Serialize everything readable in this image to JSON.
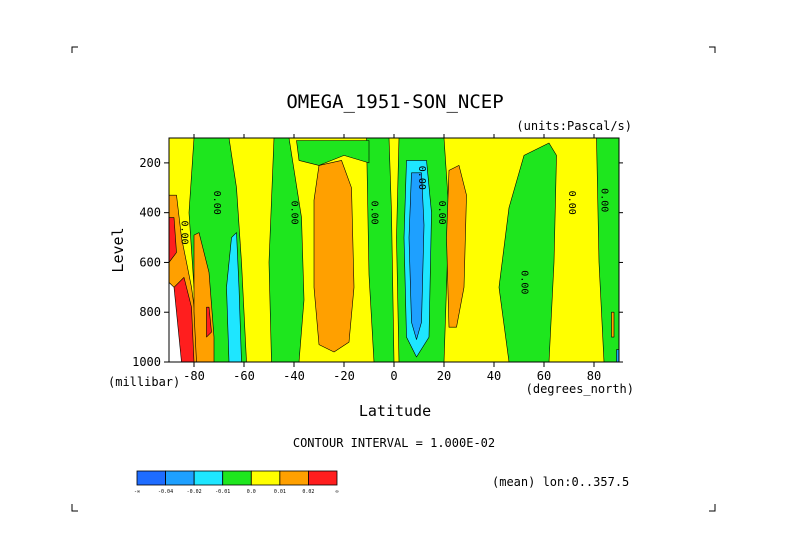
{
  "chart_data": {
    "type": "heatmap",
    "title": "OMEGA_1951-SON_NCEP",
    "units": "(units:Pascal/s)",
    "xlabel": "Latitude",
    "ylabel": "Level",
    "x_units": "(degrees_north)",
    "y_units": "(millibar)",
    "xlim": [
      -90,
      90
    ],
    "ylim": [
      1000,
      100
    ],
    "x_ticks": [
      -80,
      -60,
      -40,
      -20,
      0,
      20,
      40,
      60,
      80
    ],
    "y_ticks": [
      200,
      400,
      600,
      800,
      1000
    ],
    "x_tick_labels": [
      "-80",
      "-60",
      "-40",
      "-20",
      "0",
      "20",
      "40",
      "60",
      "80"
    ],
    "y_tick_labels": [
      "200",
      "400",
      "600",
      "800",
      "1000"
    ],
    "contour_interval_text": "CONTOUR INTERVAL = 1.000E-02",
    "mean_text": "(mean) lon:0..357.5",
    "contour_labels": [
      {
        "text": "0.00",
        "lat": -85,
        "level": 480
      },
      {
        "text": "0.00",
        "lat": -72,
        "level": 360
      },
      {
        "text": "0.00",
        "lat": -41,
        "level": 400
      },
      {
        "text": "0.00",
        "lat": -9,
        "level": 400
      },
      {
        "text": "0.00",
        "lat": 10,
        "level": 260
      },
      {
        "text": "0.00",
        "lat": 18,
        "level": 400
      },
      {
        "text": "0.00",
        "lat": 51,
        "level": 680
      },
      {
        "text": "0.00",
        "lat": 70,
        "level": 360
      },
      {
        "text": "0.00",
        "lat": 83,
        "level": 350
      }
    ],
    "color_levels": [
      {
        "label": "-∞",
        "color": "#1e6cff"
      },
      {
        "label": "-0.04",
        "color": "#1ea0ff"
      },
      {
        "label": "-0.02",
        "color": "#1ee6ff"
      },
      {
        "label": "-0.01",
        "color": "#1ee61e"
      },
      {
        "label": "0.0",
        "color": "#ffff00"
      },
      {
        "label": "0.01",
        "color": "#ffa000"
      },
      {
        "label": "0.02",
        "color": "#ff1e1e"
      },
      {
        "label": "∞",
        "color": ""
      }
    ],
    "regions": [
      {
        "fill": "#1ee61e",
        "pts": [
          [
            -80,
            100
          ],
          [
            -66,
            100
          ],
          [
            -63,
            300
          ],
          [
            -61,
            600
          ],
          [
            -59,
            1000
          ],
          [
            -76,
            1000
          ],
          [
            -80,
            700
          ],
          [
            -82,
            400
          ]
        ]
      },
      {
        "fill": "#1ee61e",
        "pts": [
          [
            -48,
            100
          ],
          [
            -42,
            100
          ],
          [
            -37,
            420
          ],
          [
            -36,
            750
          ],
          [
            -38,
            1000
          ],
          [
            -49,
            1000
          ],
          [
            -50,
            600
          ]
        ]
      },
      {
        "fill": "#1ee61e",
        "pts": [
          [
            -11,
            100
          ],
          [
            -2,
            100
          ],
          [
            -1,
            400
          ],
          [
            0,
            1000
          ],
          [
            -8,
            1000
          ],
          [
            -10,
            650
          ]
        ]
      },
      {
        "fill": "#1ee61e",
        "pts": [
          [
            -39,
            110
          ],
          [
            -10,
            110
          ],
          [
            -10,
            200
          ],
          [
            -20,
            170
          ],
          [
            -30,
            210
          ],
          [
            -38,
            190
          ]
        ]
      },
      {
        "fill": "#1ee61e",
        "pts": [
          [
            2,
            100
          ],
          [
            20,
            100
          ],
          [
            22,
            400
          ],
          [
            20,
            1000
          ],
          [
            2,
            1000
          ],
          [
            1,
            500
          ]
        ]
      },
      {
        "fill": "#1ee61e",
        "pts": [
          [
            46,
            380
          ],
          [
            52,
            170
          ],
          [
            62,
            120
          ],
          [
            65,
            170
          ],
          [
            64,
            600
          ],
          [
            62,
            1000
          ],
          [
            46,
            1000
          ],
          [
            42,
            700
          ]
        ]
      },
      {
        "fill": "#1ee61e",
        "pts": [
          [
            81,
            100
          ],
          [
            90,
            100
          ],
          [
            90,
            1000
          ],
          [
            84,
            1000
          ],
          [
            82,
            600
          ]
        ]
      },
      {
        "fill": "#1ee6ff",
        "pts": [
          [
            -65,
            500
          ],
          [
            -63,
            480
          ],
          [
            -62,
            700
          ],
          [
            -61,
            1000
          ],
          [
            -66,
            1000
          ],
          [
            -67,
            700
          ]
        ]
      },
      {
        "fill": "#1ee6ff",
        "pts": [
          [
            5,
            190
          ],
          [
            13,
            190
          ],
          [
            15,
            400
          ],
          [
            14,
            900
          ],
          [
            9,
            980
          ],
          [
            5,
            900
          ],
          [
            4,
            500
          ]
        ]
      },
      {
        "fill": "#1ea0ff",
        "pts": [
          [
            7,
            240
          ],
          [
            11,
            240
          ],
          [
            12,
            450
          ],
          [
            11,
            840
          ],
          [
            9,
            910
          ],
          [
            7,
            840
          ],
          [
            6,
            500
          ]
        ]
      },
      {
        "fill": "#ffa000",
        "pts": [
          [
            -30,
            210
          ],
          [
            -21,
            190
          ],
          [
            -17,
            300
          ],
          [
            -16,
            700
          ],
          [
            -18,
            920
          ],
          [
            -24,
            960
          ],
          [
            -30,
            930
          ],
          [
            -32,
            700
          ],
          [
            -32,
            350
          ]
        ]
      },
      {
        "fill": "#ffa000",
        "pts": [
          [
            22,
            230
          ],
          [
            26,
            210
          ],
          [
            29,
            330
          ],
          [
            28,
            700
          ],
          [
            25,
            860
          ],
          [
            22,
            860
          ],
          [
            21,
            500
          ]
        ]
      },
      {
        "fill": "#ffa000",
        "pts": [
          [
            -90,
            330
          ],
          [
            -87,
            330
          ],
          [
            -85,
            500
          ],
          [
            -81,
            700
          ],
          [
            -79,
            850
          ],
          [
            -78,
            1000
          ],
          [
            -90,
            1000
          ]
        ]
      },
      {
        "fill": "#ffa000",
        "pts": [
          [
            -80,
            490
          ],
          [
            -78,
            480
          ],
          [
            -74,
            640
          ],
          [
            -72,
            900
          ],
          [
            -72,
            1000
          ],
          [
            -79,
            1000
          ],
          [
            -80,
            800
          ]
        ]
      },
      {
        "fill": "#ffa000",
        "pts": [
          [
            87,
            800
          ],
          [
            88,
            800
          ],
          [
            88,
            900
          ],
          [
            87,
            900
          ]
        ]
      },
      {
        "fill": "#ff1e1e",
        "pts": [
          [
            -90,
            420
          ],
          [
            -88,
            420
          ],
          [
            -87,
            560
          ],
          [
            -90,
            600
          ]
        ]
      },
      {
        "fill": "#ff1e1e",
        "pts": [
          [
            -75,
            780
          ],
          [
            -74,
            780
          ],
          [
            -73,
            880
          ],
          [
            -75,
            900
          ]
        ]
      },
      {
        "fill": "#ff1e1e",
        "pts": [
          [
            -88,
            700
          ],
          [
            -84,
            660
          ],
          [
            -81,
            780
          ],
          [
            -80,
            1000
          ],
          [
            -86,
            1000
          ],
          [
            -88,
            850
          ]
        ]
      },
      {
        "fill": "#ffffff",
        "pts": [
          [
            -90,
            680
          ],
          [
            -88,
            700
          ],
          [
            -87,
            800
          ],
          [
            -85,
            1000
          ],
          [
            -90,
            1000
          ]
        ]
      },
      {
        "fill": "#1ea0ff",
        "pts": [
          [
            89,
            950
          ],
          [
            90,
            950
          ],
          [
            90,
            1000
          ],
          [
            89,
            1000
          ]
        ]
      }
    ]
  }
}
